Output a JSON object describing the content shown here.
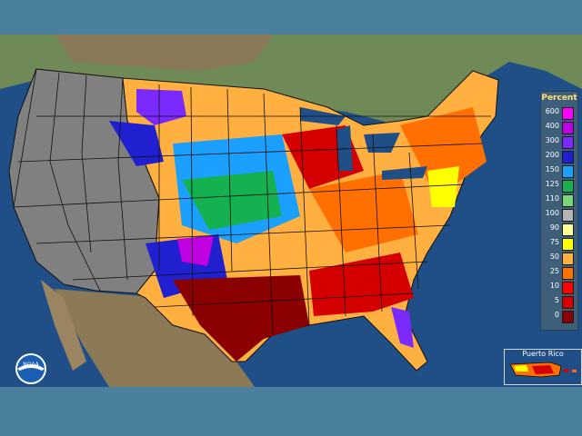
{
  "legend": {
    "title": "Percent",
    "items": [
      {
        "label": "600",
        "color": "#ff00ff"
      },
      {
        "label": "400",
        "color": "#c000e0"
      },
      {
        "label": "300",
        "color": "#7a2aff"
      },
      {
        "label": "200",
        "color": "#2020d0"
      },
      {
        "label": "150",
        "color": "#1ca0ff"
      },
      {
        "label": "125",
        "color": "#15b050"
      },
      {
        "label": "110",
        "color": "#7ad67a"
      },
      {
        "label": "100",
        "color": "#b4b4b4"
      },
      {
        "label": "90",
        "color": "#ffff9a"
      },
      {
        "label": "75",
        "color": "#ffff00"
      },
      {
        "label": "50",
        "color": "#ffb040"
      },
      {
        "label": "25",
        "color": "#ff7000"
      },
      {
        "label": "10",
        "color": "#ff0000"
      },
      {
        "label": "5",
        "color": "#d40000"
      },
      {
        "label": "0",
        "color": "#8b0000"
      }
    ]
  },
  "inset": {
    "title": "Puerto Rico"
  },
  "logo": {
    "text": "NOAA",
    "icon": "noaa-logo-icon"
  },
  "colors": {
    "ocean": "#1f4f86",
    "land_outside": "#6e8a55",
    "no_data": "#808080",
    "background": "#4a7f9e"
  }
}
